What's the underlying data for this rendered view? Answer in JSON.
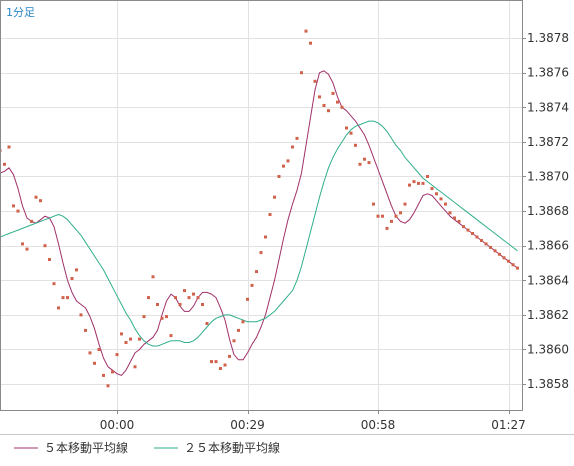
{
  "period_label": "1分足",
  "legend": [
    {
      "label": "５本移動平均線",
      "color": "#a0306a"
    },
    {
      "label": "２５本移動平均線",
      "color": "#2fae8c"
    }
  ],
  "colors": {
    "points": "#d0614a",
    "grid": "#e2e2e2",
    "axis": "#8a8a8a",
    "period_label": "#2a86c6"
  },
  "chart_data": {
    "type": "line",
    "x_tick_labels": [
      "00:00",
      "00:29",
      "00:58",
      "01:27"
    ],
    "y_tick_labels": [
      "1.3858",
      "1.3860",
      "1.3862",
      "1.3864",
      "1.3866",
      "1.3868",
      "1.3870",
      "1.3872",
      "1.3874",
      "1.3876",
      "1.3878"
    ],
    "xlim": [
      -26,
      90
    ],
    "ylim": [
      1.38565,
      1.38802
    ],
    "x_ticks": [
      0,
      29,
      58,
      87
    ],
    "y_ticks": [
      1.3858,
      1.386,
      1.3862,
      1.3864,
      1.3866,
      1.3868,
      1.387,
      1.3872,
      1.3874,
      1.3876,
      1.3878
    ],
    "grid": true,
    "legend_position": "bottom-left",
    "series": [
      {
        "name": "５本移動平均線",
        "kind": "line",
        "color": "#a0306a",
        "x": [
          -26,
          -25,
          -24,
          -23,
          -22,
          -21,
          -20,
          -19,
          -18,
          -17,
          -16,
          -15,
          -14,
          -13,
          -12,
          -11,
          -10,
          -9,
          -8,
          -7,
          -6,
          -5,
          -4,
          -3,
          -2,
          -1,
          0,
          1,
          2,
          3,
          4,
          5,
          6,
          7,
          8,
          9,
          10,
          11,
          12,
          13,
          14,
          15,
          16,
          17,
          18,
          19,
          20,
          21,
          22,
          23,
          24,
          25,
          26,
          27,
          28,
          29,
          30,
          31,
          32,
          33,
          34,
          35,
          36,
          37,
          38,
          39,
          40,
          41,
          42,
          43,
          44,
          45,
          46,
          47,
          48,
          49,
          50,
          51,
          52,
          53,
          54,
          55,
          56,
          57,
          58,
          59,
          60,
          61,
          62,
          63,
          64,
          65,
          66,
          67,
          68,
          69,
          70,
          71,
          72,
          73,
          74,
          75,
          76,
          77,
          78,
          79,
          80,
          81,
          82,
          83,
          84,
          85,
          86,
          87,
          88,
          89
        ],
        "y": [
          1.38702,
          1.38703,
          1.38705,
          1.38701,
          1.38693,
          1.38683,
          1.38676,
          1.38674,
          1.38673,
          1.38675,
          1.38677,
          1.38676,
          1.38671,
          1.38661,
          1.3865,
          1.3864,
          1.38633,
          1.38628,
          1.38626,
          1.38624,
          1.38619,
          1.38612,
          1.38603,
          1.38595,
          1.3859,
          1.38588,
          1.38586,
          1.38585,
          1.38588,
          1.38593,
          1.38598,
          1.386,
          1.38603,
          1.38605,
          1.38607,
          1.38611,
          1.3862,
          1.38628,
          1.38632,
          1.3863,
          1.38625,
          1.38622,
          1.38622,
          1.38625,
          1.3863,
          1.38633,
          1.38633,
          1.38632,
          1.3863,
          1.38624,
          1.38617,
          1.38606,
          1.38597,
          1.38594,
          1.38594,
          1.38598,
          1.38603,
          1.38607,
          1.38613,
          1.3862,
          1.3863,
          1.3864,
          1.38652,
          1.38664,
          1.38675,
          1.38684,
          1.38692,
          1.38702,
          1.38718,
          1.38734,
          1.3875,
          1.3876,
          1.38761,
          1.38759,
          1.38754,
          1.38746,
          1.3874,
          1.38738,
          1.38735,
          1.38732,
          1.38728,
          1.38724,
          1.38718,
          1.38711,
          1.38704,
          1.38697,
          1.3869,
          1.38683,
          1.38677,
          1.38674,
          1.38673,
          1.38675,
          1.38679,
          1.38684,
          1.38689,
          1.3869,
          1.38689,
          1.38686,
          1.38683,
          1.3868,
          1.38677,
          1.38675,
          1.38673,
          1.38671,
          1.38669,
          1.38667,
          1.38665,
          1.38663,
          1.38661,
          1.38659,
          1.38657,
          1.38655,
          1.38653,
          1.38651,
          1.38649,
          1.38647
        ]
      },
      {
        "name": "２５本移動平均線",
        "kind": "line",
        "color": "#2fae8c",
        "x": [
          -26,
          -25,
          -24,
          -23,
          -22,
          -21,
          -20,
          -19,
          -18,
          -17,
          -16,
          -15,
          -14,
          -13,
          -12,
          -11,
          -10,
          -9,
          -8,
          -7,
          -6,
          -5,
          -4,
          -3,
          -2,
          -1,
          0,
          1,
          2,
          3,
          4,
          5,
          6,
          7,
          8,
          9,
          10,
          11,
          12,
          13,
          14,
          15,
          16,
          17,
          18,
          19,
          20,
          21,
          22,
          23,
          24,
          25,
          26,
          27,
          28,
          29,
          30,
          31,
          32,
          33,
          34,
          35,
          36,
          37,
          38,
          39,
          40,
          41,
          42,
          43,
          44,
          45,
          46,
          47,
          48,
          49,
          50,
          51,
          52,
          53,
          54,
          55,
          56,
          57,
          58,
          59,
          60,
          61,
          62,
          63,
          64,
          65,
          66,
          67,
          68,
          69,
          70,
          71,
          72,
          73,
          74,
          75,
          76,
          77,
          78,
          79,
          80,
          81,
          82,
          83,
          84,
          85,
          86,
          87,
          88,
          89
        ],
        "y": [
          1.38665,
          1.38666,
          1.38667,
          1.38668,
          1.38669,
          1.3867,
          1.38671,
          1.38672,
          1.38673,
          1.38674,
          1.38675,
          1.38676,
          1.38677,
          1.38678,
          1.38677,
          1.38675,
          1.38672,
          1.38669,
          1.38666,
          1.38662,
          1.38658,
          1.38654,
          1.3865,
          1.38646,
          1.38641,
          1.38636,
          1.38631,
          1.38626,
          1.38621,
          1.38617,
          1.38612,
          1.38608,
          1.38605,
          1.38603,
          1.38602,
          1.38602,
          1.38603,
          1.38604,
          1.38605,
          1.38605,
          1.38605,
          1.38604,
          1.38604,
          1.38605,
          1.38607,
          1.3861,
          1.38613,
          1.38616,
          1.38618,
          1.38619,
          1.3862,
          1.3862,
          1.38619,
          1.38618,
          1.38617,
          1.38616,
          1.38616,
          1.38616,
          1.38617,
          1.38618,
          1.3862,
          1.38622,
          1.38625,
          1.38628,
          1.38631,
          1.38634,
          1.3864,
          1.38648,
          1.38658,
          1.38668,
          1.38678,
          1.38688,
          1.38697,
          1.38705,
          1.38711,
          1.38716,
          1.3872,
          1.38724,
          1.38727,
          1.38729,
          1.3873,
          1.38731,
          1.38732,
          1.38732,
          1.38731,
          1.38729,
          1.38726,
          1.38722,
          1.38718,
          1.38715,
          1.38711,
          1.38708,
          1.38705,
          1.38702,
          1.38699,
          1.38697,
          1.38695,
          1.38693,
          1.38691,
          1.38689,
          1.38687,
          1.38685,
          1.38683,
          1.38681,
          1.38679,
          1.38677,
          1.38675,
          1.38673,
          1.38671,
          1.38669,
          1.38667,
          1.38665,
          1.38663,
          1.38661,
          1.38659,
          1.38657
        ]
      },
      {
        "name": "",
        "kind": "points",
        "color": "#d0614a",
        "x": [
          -26,
          -25,
          -24,
          -23,
          -22,
          -21,
          -20,
          -19,
          -18,
          -17,
          -16,
          -15,
          -14,
          -13,
          -12,
          -11,
          -10,
          -9,
          -8,
          -7,
          -6,
          -5,
          -4,
          -3,
          -2,
          -1,
          0,
          1,
          2,
          3,
          4,
          5,
          6,
          7,
          8,
          9,
          10,
          11,
          12,
          13,
          14,
          15,
          16,
          17,
          18,
          19,
          20,
          21,
          22,
          23,
          24,
          25,
          26,
          27,
          28,
          29,
          30,
          31,
          32,
          33,
          34,
          35,
          36,
          37,
          38,
          39,
          40,
          41,
          42,
          43,
          44,
          45,
          46,
          47,
          48,
          49,
          50,
          51,
          52,
          53,
          54,
          55,
          56,
          57,
          58,
          59,
          60,
          61,
          62,
          63,
          64,
          65,
          66,
          67,
          68,
          69,
          70,
          71,
          72,
          73,
          74,
          75,
          76,
          77,
          78,
          79,
          80,
          81,
          82,
          83,
          84,
          85,
          86,
          87,
          88,
          89
        ],
        "y": [
          1.38715,
          1.38707,
          1.38717,
          1.38683,
          1.3868,
          1.38661,
          1.38658,
          1.38674,
          1.38688,
          1.38686,
          1.3866,
          1.38652,
          1.38638,
          1.38624,
          1.3863,
          1.3863,
          1.38641,
          1.38646,
          1.3862,
          1.38611,
          1.38598,
          1.38592,
          1.386,
          1.38585,
          1.38579,
          1.38587,
          1.38597,
          1.38609,
          1.38604,
          1.38606,
          1.3859,
          1.38606,
          1.38619,
          1.3863,
          1.38642,
          1.38626,
          1.38618,
          1.38619,
          1.38608,
          1.3863,
          1.38626,
          1.38634,
          1.3863,
          1.38632,
          1.3863,
          1.38626,
          1.38615,
          1.38593,
          1.38593,
          1.38589,
          1.38591,
          1.38596,
          1.38605,
          1.38611,
          1.38616,
          1.38629,
          1.38637,
          1.38645,
          1.38656,
          1.38665,
          1.38678,
          1.38688,
          1.387,
          1.38706,
          1.38709,
          1.38717,
          1.38722,
          1.3876,
          1.38784,
          1.38777,
          1.38755,
          1.38746,
          1.38741,
          1.38738,
          1.38748,
          1.38743,
          1.3874,
          1.38728,
          1.38725,
          1.38718,
          1.38707,
          1.3871,
          1.38708,
          1.38684,
          1.38677,
          1.38677,
          1.3867,
          1.38674,
          1.38677,
          1.38679,
          1.38684,
          1.38695,
          1.38697,
          1.38696,
          1.38696,
          1.387,
          1.38693,
          1.3869,
          1.38687,
          1.38684,
          1.38679,
          1.38676,
          1.38674,
          1.38671,
          1.38669,
          1.38667,
          1.38665,
          1.38663,
          1.38661,
          1.38659,
          1.38657,
          1.38655,
          1.38653,
          1.38651,
          1.38649,
          1.38647
        ]
      }
    ]
  }
}
